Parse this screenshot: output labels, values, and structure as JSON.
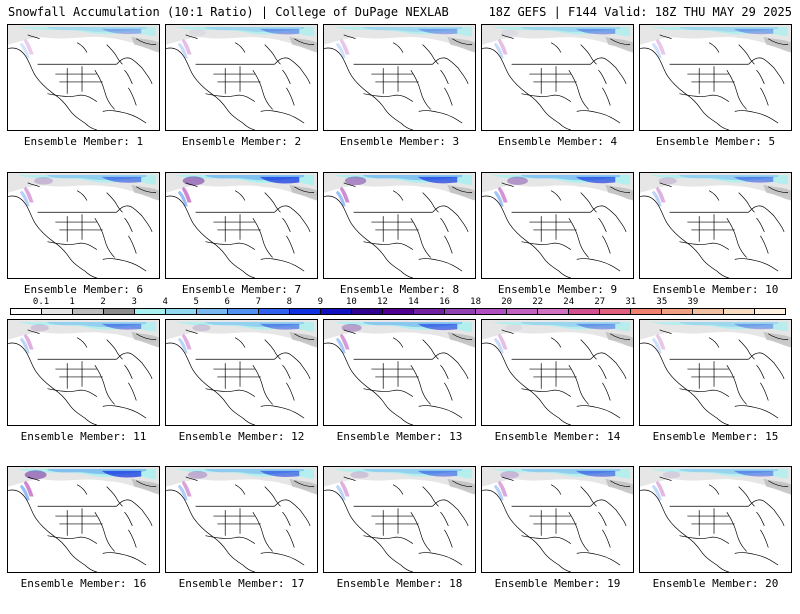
{
  "header": {
    "left_title": "Snowfall Accumulation (10:1 Ratio) | College of DuPage NEXLAB",
    "right_title": "18Z GEFS | F144 Valid: 18Z THU MAY 29 2025"
  },
  "panels": [
    {
      "caption": "Ensemble Member: 1",
      "intensity": 0.35
    },
    {
      "caption": "Ensemble Member: 2",
      "intensity": 0.45
    },
    {
      "caption": "Ensemble Member: 3",
      "intensity": 0.4
    },
    {
      "caption": "Ensemble Member: 4",
      "intensity": 0.45
    },
    {
      "caption": "Ensemble Member: 5",
      "intensity": 0.4
    },
    {
      "caption": "Ensemble Member: 6",
      "intensity": 0.6
    },
    {
      "caption": "Ensemble Member: 7",
      "intensity": 0.85
    },
    {
      "caption": "Ensemble Member: 8",
      "intensity": 0.8
    },
    {
      "caption": "Ensemble Member: 9",
      "intensity": 0.75
    },
    {
      "caption": "Ensemble Member: 10",
      "intensity": 0.55
    },
    {
      "caption": "Ensemble Member: 11",
      "intensity": 0.55
    },
    {
      "caption": "Ensemble Member: 12",
      "intensity": 0.55
    },
    {
      "caption": "Ensemble Member: 13",
      "intensity": 0.7
    },
    {
      "caption": "Ensemble Member: 14",
      "intensity": 0.45
    },
    {
      "caption": "Ensemble Member: 15",
      "intensity": 0.4
    },
    {
      "caption": "Ensemble Member: 16",
      "intensity": 0.85
    },
    {
      "caption": "Ensemble Member: 17",
      "intensity": 0.65
    },
    {
      "caption": "Ensemble Member: 18",
      "intensity": 0.55
    },
    {
      "caption": "Ensemble Member: 19",
      "intensity": 0.6
    },
    {
      "caption": "Ensemble Member: 20",
      "intensity": 0.5
    }
  ],
  "colorbar": {
    "labels": [
      "0.1",
      "1",
      "2",
      "3",
      "4",
      "5",
      "6",
      "7",
      "8",
      "9",
      "10",
      "12",
      "14",
      "16",
      "18",
      "20",
      "22",
      "24",
      "27",
      "31",
      "35",
      "39"
    ],
    "colors": [
      "#ffffff",
      "#e6e6e6",
      "#bdbdbd",
      "#8c8c8c",
      "#a8f0f0",
      "#90d8f0",
      "#78b8f0",
      "#5090f0",
      "#3060f0",
      "#1030e0",
      "#1010c0",
      "#300090",
      "#500090",
      "#7020a0",
      "#9040b0",
      "#b050c0",
      "#c060c0",
      "#d070c0",
      "#d05090",
      "#e06080",
      "#f08070",
      "#f0a080",
      "#f0c0a0",
      "#f8dcc0",
      "#fff0e0"
    ]
  }
}
